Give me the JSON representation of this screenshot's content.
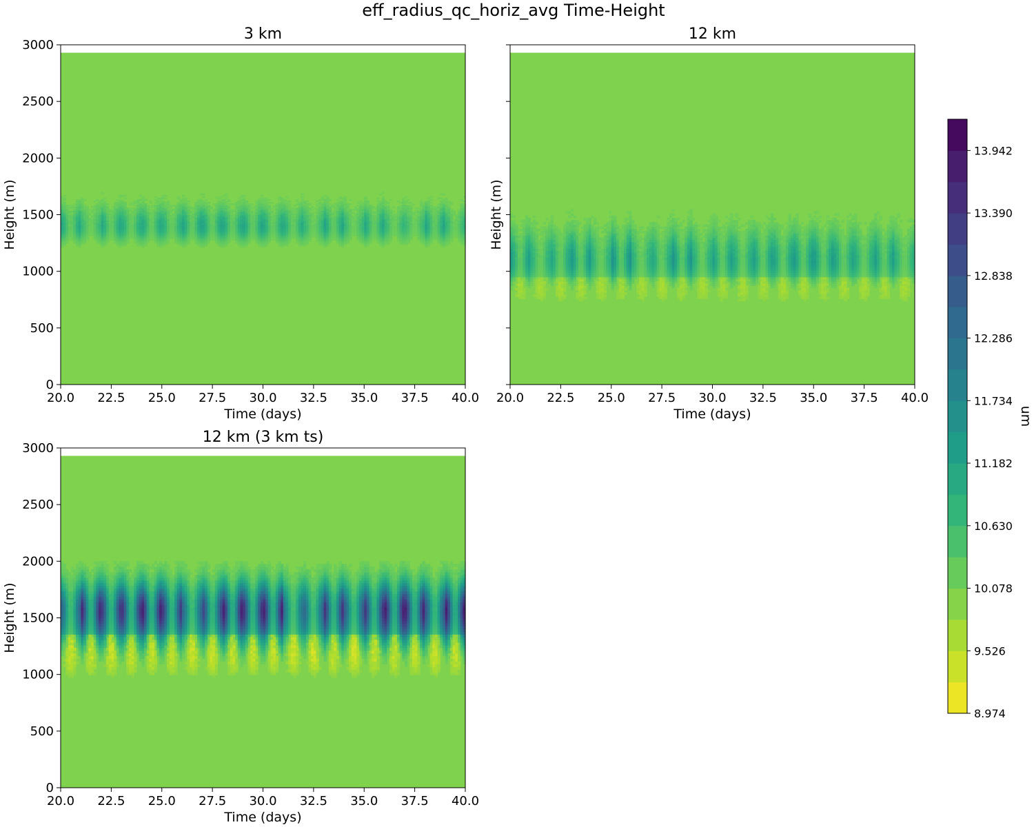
{
  "figure": {
    "title": "eff_radius_qc_horiz_avg Time-Height"
  },
  "colorbar": {
    "label": "um",
    "tick_labels": [
      "8.974",
      "9.526",
      "10.078",
      "10.630",
      "11.182",
      "11.734",
      "12.286",
      "12.838",
      "13.390",
      "13.942"
    ]
  },
  "chart_data": [
    {
      "type": "heatmap",
      "title": "3 km",
      "xlabel": "Time (days)",
      "ylabel": "Height (m)",
      "xlim": [
        20.0,
        40.0
      ],
      "ylim": [
        0,
        3000
      ],
      "xticks": [
        "20.0",
        "22.5",
        "25.0",
        "27.5",
        "30.0",
        "32.5",
        "35.0",
        "37.5",
        "40.0"
      ],
      "yticks": [
        "0",
        "500",
        "1000",
        "1500",
        "2000",
        "2500",
        "3000"
      ],
      "data_top_height": 2930,
      "background_value": 10.0,
      "cloud_layer": {
        "base_height": 1150,
        "center_height": 1400,
        "top_height": 1700,
        "peak_value": 11.2,
        "cycles": 20,
        "min_value": 10.0
      },
      "colorscale": "viridis_r",
      "vmin": 8.974,
      "vmax": 14.218
    },
    {
      "type": "heatmap",
      "title": "12 km",
      "xlabel": "Time (days)",
      "ylabel": "Height (m)",
      "xlim": [
        20.0,
        40.0
      ],
      "ylim": [
        0,
        3000
      ],
      "xticks": [
        "20.0",
        "22.5",
        "25.0",
        "27.5",
        "30.0",
        "32.5",
        "35.0",
        "37.5",
        "40.0"
      ],
      "yticks": [],
      "data_top_height": 2930,
      "background_value": 10.0,
      "cloud_layer": {
        "base_height": 700,
        "center_height": 1100,
        "top_height": 1550,
        "peak_value": 11.6,
        "cycles": 20,
        "min_value": 9.5
      },
      "colorscale": "viridis_r",
      "vmin": 8.974,
      "vmax": 14.218
    },
    {
      "type": "heatmap",
      "title": "12 km (3 km ts)",
      "xlabel": "Time (days)",
      "ylabel": "Height (m)",
      "xlim": [
        20.0,
        40.0
      ],
      "ylim": [
        0,
        3000
      ],
      "xticks": [
        "20.0",
        "22.5",
        "25.0",
        "27.5",
        "30.0",
        "32.5",
        "35.0",
        "37.5",
        "40.0"
      ],
      "yticks": [
        "0",
        "500",
        "1000",
        "1500",
        "2000",
        "2500",
        "3000"
      ],
      "data_top_height": 2930,
      "background_value": 10.0,
      "cloud_layer": {
        "base_height": 950,
        "center_height": 1570,
        "top_height": 2000,
        "peak_value": 14.0,
        "cycles": 20,
        "min_value": 9.0
      },
      "colorscale": "viridis_r",
      "vmin": 8.974,
      "vmax": 14.218
    }
  ]
}
